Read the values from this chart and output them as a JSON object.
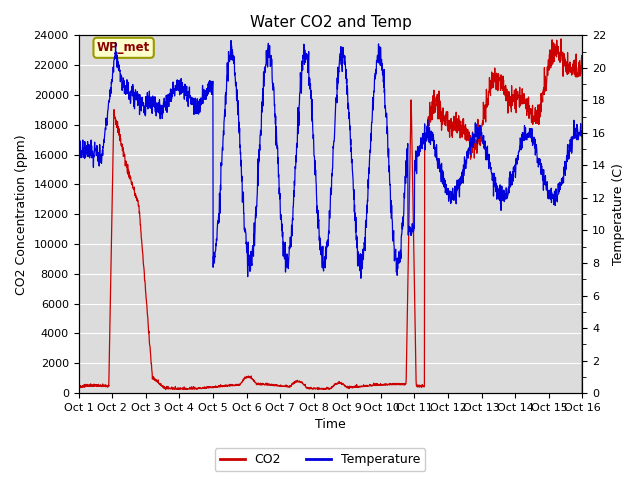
{
  "title": "Water CO2 and Temp",
  "xlabel": "Time",
  "ylabel_left": "CO2 Concentration (ppm)",
  "ylabel_right": "Temperature (C)",
  "xlim": [
    0,
    15
  ],
  "ylim_co2": [
    0,
    24000
  ],
  "ylim_temp": [
    0,
    22
  ],
  "x_tick_labels": [
    "Oct 1",
    "Oct 2",
    "Oct 3",
    "Oct 4",
    "Oct 5",
    "Oct 6",
    "Oct 7",
    "Oct 8",
    "Oct 9",
    "Oct 10",
    "Oct 11",
    "Oct 12",
    "Oct 13",
    "Oct 14",
    "Oct 15",
    "Oct 16"
  ],
  "co2_color": "#cc0000",
  "temp_color": "#0000dd",
  "axes_bg_color": "#dcdcdc",
  "annotation_text": "WP_met",
  "annotation_box_color": "#ffffcc",
  "annotation_border_color": "#999900",
  "annotation_text_color": "#8b0000",
  "legend_co2": "CO2",
  "legend_temp": "Temperature",
  "grid_color": "#ffffff",
  "title_fontsize": 11,
  "label_fontsize": 9,
  "tick_fontsize": 8
}
